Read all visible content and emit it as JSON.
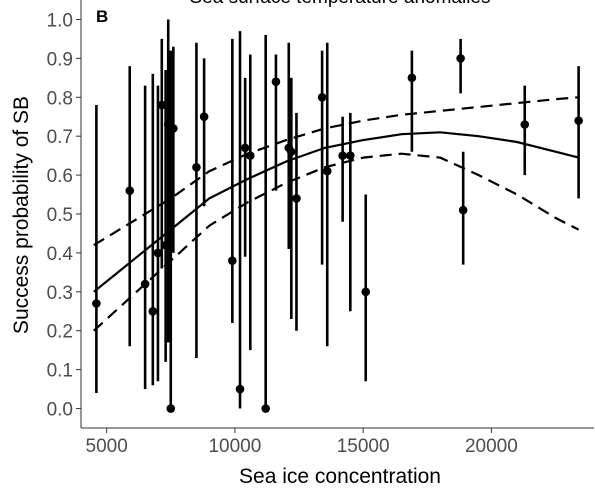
{
  "chart_data": {
    "type": "scatter",
    "title": "Sea surface temperature anomalies",
    "panel_label": "B",
    "xlabel": "Sea ice concentration",
    "ylabel": "Success probability of SB",
    "xlim": [
      4000,
      24000
    ],
    "ylim": [
      -0.05,
      1.05
    ],
    "x_ticks": [
      5000,
      10000,
      15000,
      20000
    ],
    "x_tick_labels": [
      "5000",
      "10000",
      "15000",
      "20000"
    ],
    "y_ticks": [
      0.0,
      0.1,
      0.2,
      0.3,
      0.4,
      0.5,
      0.6,
      0.7,
      0.8,
      0.9,
      1.0
    ],
    "y_tick_labels": [
      "0.0",
      "0.1",
      "0.2",
      "0.3",
      "0.4",
      "0.5",
      "0.6",
      "0.7",
      "0.8",
      "0.9",
      "1.0"
    ],
    "grid": false,
    "points": [
      {
        "x": 4600,
        "y": 0.27,
        "lo": 0.04,
        "hi": 0.78
      },
      {
        "x": 5900,
        "y": 0.56,
        "lo": 0.16,
        "hi": 0.88
      },
      {
        "x": 6500,
        "y": 0.32,
        "lo": 0.05,
        "hi": 0.83
      },
      {
        "x": 6800,
        "y": 0.25,
        "lo": 0.06,
        "hi": 0.86
      },
      {
        "x": 7000,
        "y": 0.4,
        "lo": 0.07,
        "hi": 0.83
      },
      {
        "x": 7150,
        "y": 0.78,
        "lo": 0.36,
        "hi": 0.95
      },
      {
        "x": 7300,
        "y": 0.42,
        "lo": 0.12,
        "hi": 0.87
      },
      {
        "x": 7400,
        "y": 0.73,
        "lo": 0.17,
        "hi": 1.0
      },
      {
        "x": 7500,
        "y": 0.0,
        "lo": 0.0,
        "hi": 0.92
      },
      {
        "x": 7600,
        "y": 0.72,
        "lo": 0.4,
        "hi": 0.93
      },
      {
        "x": 8500,
        "y": 0.62,
        "lo": 0.13,
        "hi": 0.94
      },
      {
        "x": 8800,
        "y": 0.75,
        "lo": 0.52,
        "hi": 0.9
      },
      {
        "x": 9900,
        "y": 0.38,
        "lo": 0.22,
        "hi": 0.95
      },
      {
        "x": 10200,
        "y": 0.05,
        "lo": 0.0,
        "hi": 0.97
      },
      {
        "x": 10400,
        "y": 0.67,
        "lo": 0.39,
        "hi": 0.85
      },
      {
        "x": 10600,
        "y": 0.65,
        "lo": 0.15,
        "hi": 0.91
      },
      {
        "x": 11200,
        "y": 0.0,
        "lo": 0.0,
        "hi": 0.96
      },
      {
        "x": 11600,
        "y": 0.84,
        "lo": 0.56,
        "hi": 0.91
      },
      {
        "x": 12100,
        "y": 0.67,
        "lo": 0.41,
        "hi": 0.94
      },
      {
        "x": 12200,
        "y": 0.66,
        "lo": 0.23,
        "hi": 0.85
      },
      {
        "x": 12400,
        "y": 0.54,
        "lo": 0.2,
        "hi": 0.76
      },
      {
        "x": 13400,
        "y": 0.8,
        "lo": 0.37,
        "hi": 0.92
      },
      {
        "x": 13600,
        "y": 0.61,
        "lo": 0.16,
        "hi": 0.94
      },
      {
        "x": 14200,
        "y": 0.65,
        "lo": 0.48,
        "hi": 0.75
      },
      {
        "x": 14500,
        "y": 0.65,
        "lo": 0.25,
        "hi": 0.76
      },
      {
        "x": 15100,
        "y": 0.3,
        "lo": 0.07,
        "hi": 0.55
      },
      {
        "x": 16900,
        "y": 0.85,
        "lo": 0.66,
        "hi": 0.92
      },
      {
        "x": 18800,
        "y": 0.9,
        "lo": 0.81,
        "hi": 0.95
      },
      {
        "x": 18900,
        "y": 0.51,
        "lo": 0.37,
        "hi": 0.66
      },
      {
        "x": 21300,
        "y": 0.73,
        "lo": 0.6,
        "hi": 0.83
      },
      {
        "x": 23400,
        "y": 0.74,
        "lo": 0.54,
        "hi": 0.88
      }
    ],
    "fit_line": {
      "x": [
        4500,
        6000,
        7500,
        9000,
        10500,
        12000,
        13500,
        15000,
        16500,
        18000,
        19500,
        21000,
        22500,
        23400
      ],
      "y": [
        0.3,
        0.38,
        0.46,
        0.54,
        0.59,
        0.635,
        0.67,
        0.69,
        0.705,
        0.71,
        0.7,
        0.685,
        0.66,
        0.645
      ]
    },
    "ci_upper": {
      "x": [
        4500,
        6000,
        7500,
        9000,
        10500,
        12000,
        13500,
        15000,
        16500,
        18000,
        19500,
        21000,
        22500,
        23400
      ],
      "y": [
        0.42,
        0.48,
        0.54,
        0.61,
        0.655,
        0.69,
        0.72,
        0.74,
        0.755,
        0.765,
        0.775,
        0.785,
        0.795,
        0.8
      ]
    },
    "ci_lower": {
      "x": [
        4500,
        6000,
        7500,
        9000,
        10500,
        12000,
        13500,
        15000,
        16500,
        18000,
        19500,
        21000,
        22500,
        23400
      ],
      "y": [
        0.2,
        0.29,
        0.38,
        0.47,
        0.53,
        0.58,
        0.62,
        0.645,
        0.655,
        0.645,
        0.6,
        0.55,
        0.49,
        0.46
      ]
    },
    "colors": {
      "points": "#000000",
      "lines": "#000000",
      "axis": "#333333",
      "tick_text": "#4d4d4d"
    }
  }
}
